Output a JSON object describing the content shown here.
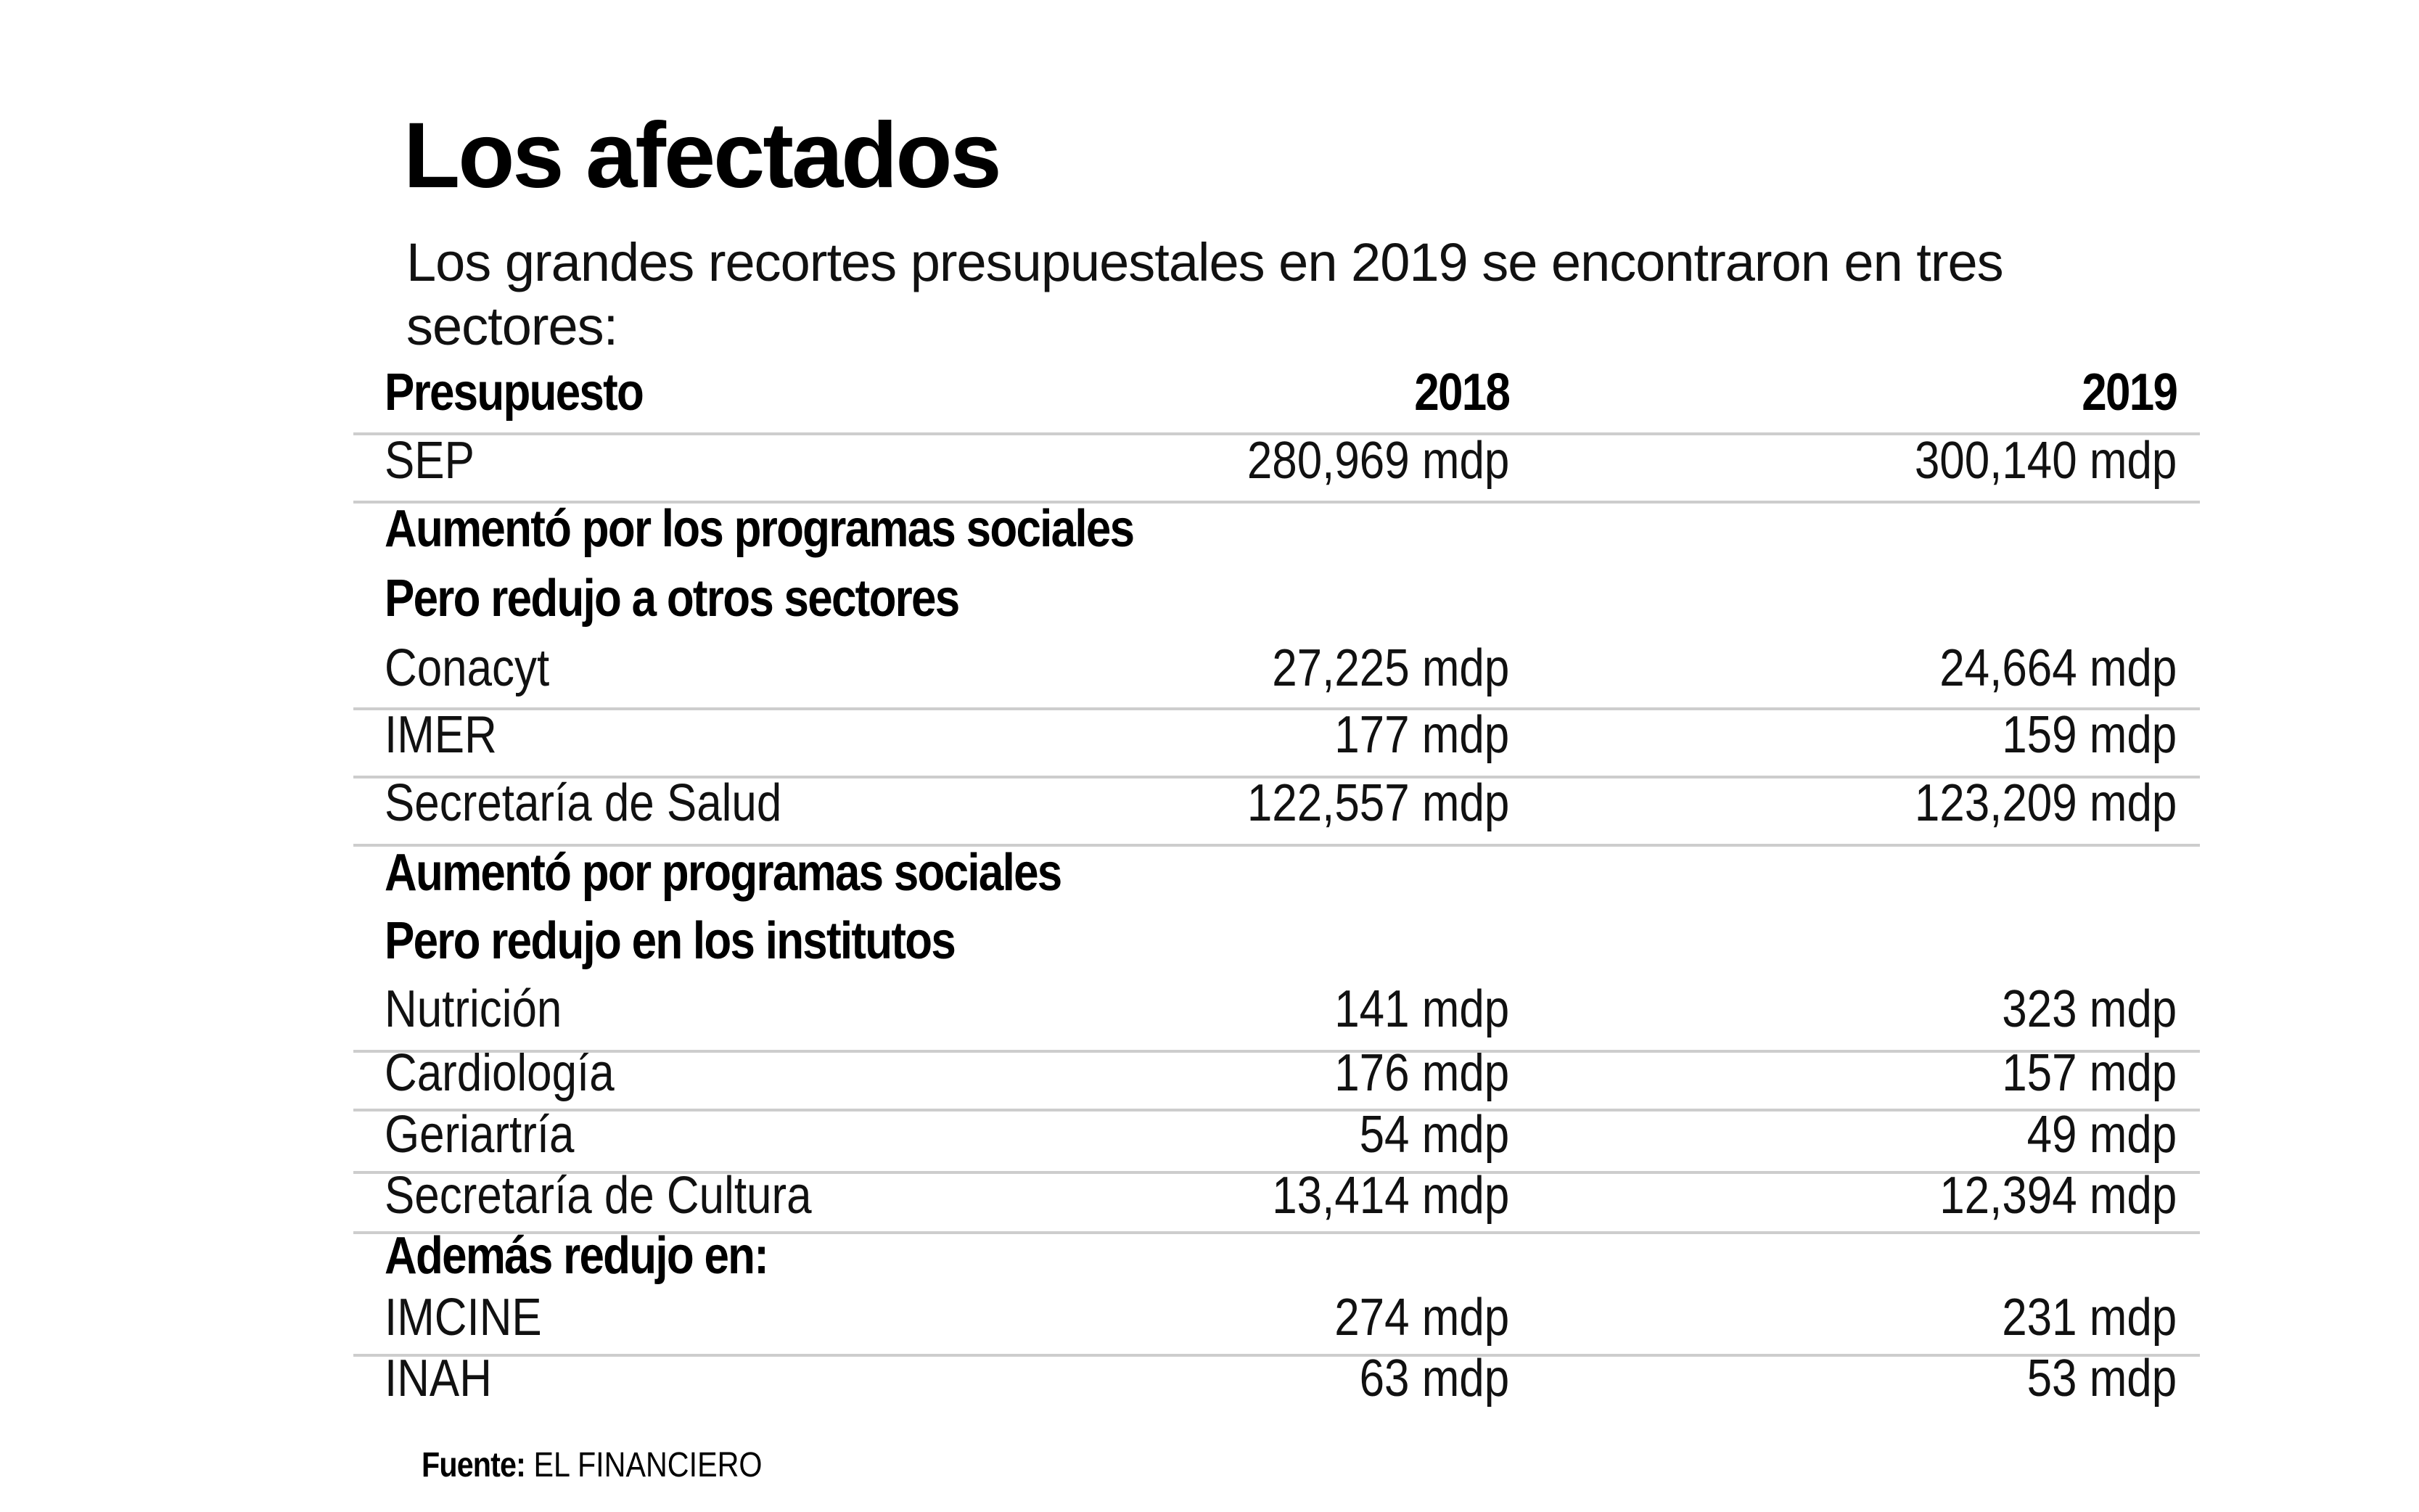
{
  "title": "Los afectados",
  "subtitle": "Los grandes recortes presupuestales en 2019 se encontraron en tres sectores:",
  "table": {
    "header": {
      "label": "Presupuesto",
      "col_2018": "2018",
      "col_2019": "2019"
    },
    "rows": [
      {
        "type": "data",
        "label": "SEP",
        "v2018": "280,969 mdp",
        "v2019": "300,140 mdp"
      },
      {
        "type": "section",
        "label": "Aumentó por los programas sociales"
      },
      {
        "type": "section",
        "label": "Pero redujo a otros sectores"
      },
      {
        "type": "data",
        "label": "Conacyt",
        "v2018": "27,225 mdp",
        "v2019": "24,664 mdp"
      },
      {
        "type": "data",
        "label": "IMER",
        "v2018": "177 mdp",
        "v2019": "159 mdp"
      },
      {
        "type": "data",
        "label": "Secretaría de Salud",
        "v2018": "122,557 mdp",
        "v2019": "123,209 mdp"
      },
      {
        "type": "section",
        "label": "Aumentó por programas sociales"
      },
      {
        "type": "section",
        "label": "Pero redujo en los institutos"
      },
      {
        "type": "data",
        "label": "Nutrición",
        "v2018": "141 mdp",
        "v2019": "323 mdp"
      },
      {
        "type": "data",
        "label": "Cardiología",
        "v2018": "176 mdp",
        "v2019": "157 mdp"
      },
      {
        "type": "data",
        "label": "Geriartría",
        "v2018": "54 mdp",
        "v2019": "49 mdp"
      },
      {
        "type": "data",
        "label": "Secretaría  de Cultura",
        "v2018": "13,414 mdp",
        "v2019": "12,394 mdp"
      },
      {
        "type": "section",
        "label": "Además redujo en:"
      },
      {
        "type": "data",
        "label": "IMCINE",
        "v2018": "274 mdp",
        "v2019": "231 mdp"
      },
      {
        "type": "data",
        "label": "INAH",
        "v2018": "63 mdp",
        "v2019": "53 mdp"
      }
    ]
  },
  "source": {
    "label": "Fuente:",
    "value": "EL FINANCIERO"
  },
  "colors": {
    "text": "#000000",
    "rule": "#cdcdcd",
    "background": "#ffffff"
  }
}
